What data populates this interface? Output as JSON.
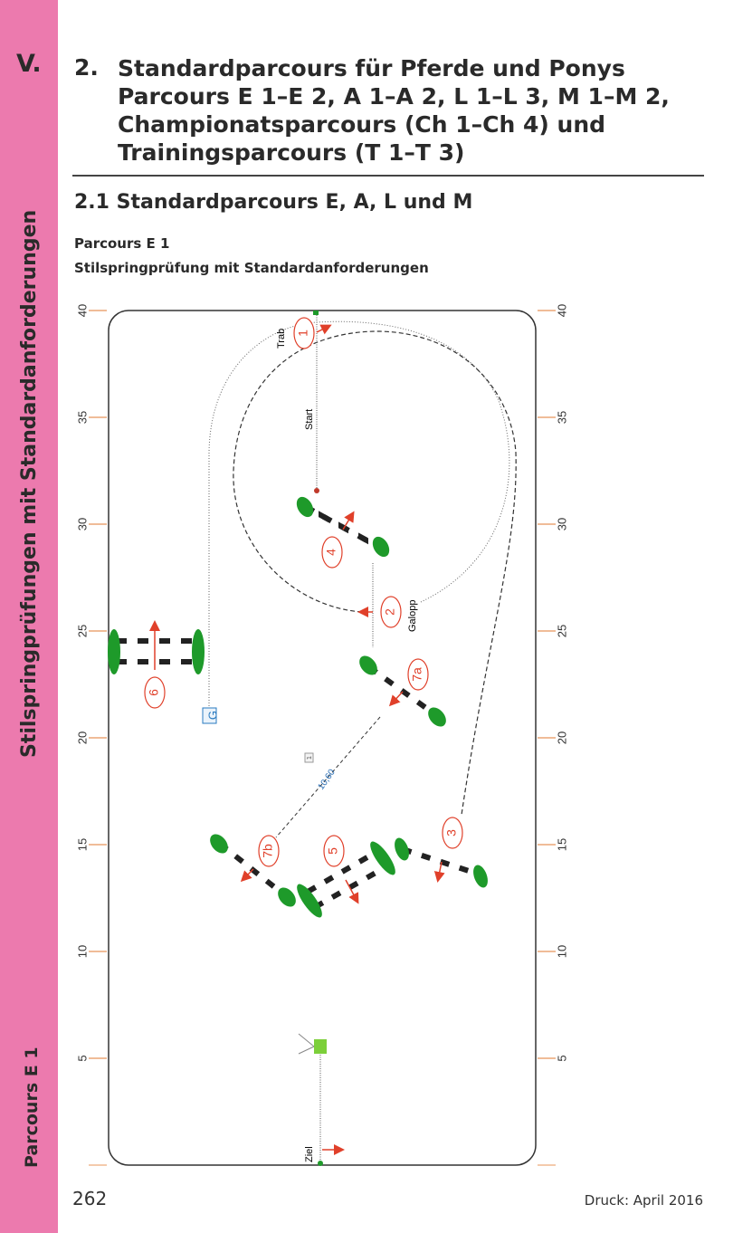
{
  "sidebar": {
    "chapter": "V.",
    "section_label": "Stilspringprüfungen mit Standardanforderungen",
    "parcours_label": "Parcours E 1",
    "color": "#ec7aae"
  },
  "header": {
    "number": "2.",
    "title": "Standardparcours für Pferde und Ponys Parcours E 1–E 2, A 1–A 2, L 1–L 3, M 1–M 2, Championatsparcours (Ch 1–Ch 4) und Trainingsparcours (T 1–T 3)"
  },
  "subheading": "2.1 Standardparcours E, A, L und M",
  "parcours": {
    "title": "Parcours E 1",
    "subtitle": "Stilspringprüfung mit Standardanforderungen"
  },
  "diagram": {
    "scale_ticks": [
      "40",
      "35",
      "30",
      "25",
      "20",
      "15",
      "10",
      "5"
    ],
    "labels": {
      "trab": "Trab",
      "start": "Start",
      "galopp": "Galopp",
      "ziel": "Ziel",
      "gate": "G",
      "distance": "10,60",
      "distance_marker": "1"
    },
    "jumps": [
      "1",
      "2",
      "3",
      "4",
      "5",
      "6",
      "7a",
      "7b"
    ],
    "colors": {
      "jump_label": "#e0402a",
      "standard": "#1e9a2a",
      "distance": "#2a6fb5",
      "gate": "#2a7bc0"
    }
  },
  "footer": {
    "page": "262",
    "print": "Druck: April 2016"
  }
}
